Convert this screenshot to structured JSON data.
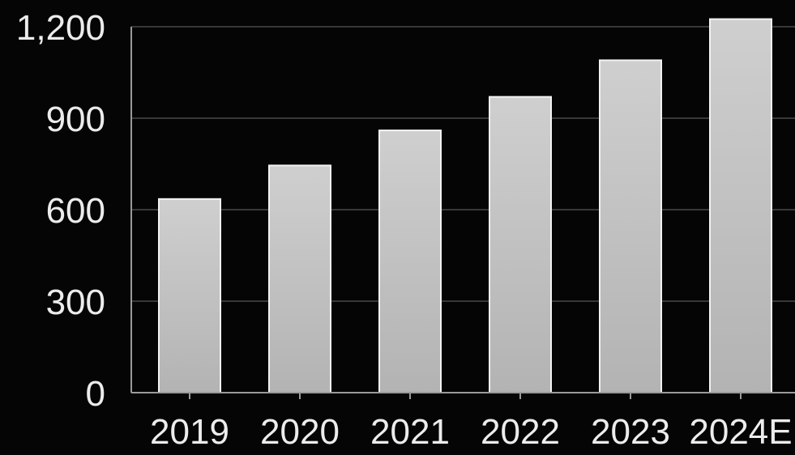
{
  "chart_data": {
    "type": "bar",
    "categories": [
      "2019",
      "2020",
      "2021",
      "2022",
      "2023",
      "2024E"
    ],
    "values": [
      635,
      745,
      860,
      970,
      1090,
      1225
    ],
    "title": "",
    "xlabel": "",
    "ylabel": "",
    "ylim": [
      0,
      1200
    ],
    "yticks": [
      0,
      300,
      600,
      900,
      1200
    ],
    "ytick_labels": [
      "0",
      "300",
      "600",
      "900",
      "1,200"
    ],
    "grid": true,
    "legend": "none",
    "colors": {
      "background": "#050505",
      "bar_fill_top": "#cfcfcf",
      "bar_fill_bottom": "#b3b3b3",
      "bar_edge": "#f2f2f2",
      "grid": "#4a4a4a",
      "text": "#ececec"
    }
  }
}
